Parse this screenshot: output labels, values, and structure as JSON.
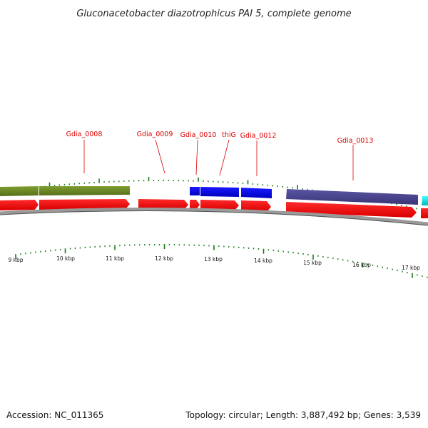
{
  "title": "Gluconacetobacter diazotrophicus PAI 5, complete genome",
  "footer": {
    "accession": "Accession: NC_011365",
    "summary": "Topology: circular; Length: 3,887,492 bp; Genes: 3,539"
  },
  "colors": {
    "cds": "#ff0000",
    "backbone": "#8a8a8a",
    "label": "#dd0000",
    "tick": "#1a7a1a",
    "olive": "#6b8a23",
    "blue": "#0000ee",
    "slate": "#4a4590",
    "cyan": "#00dddd"
  },
  "gene_labels": [
    "Gdia_0008",
    "Gdia_0009",
    "Gdia_0010",
    "thiG",
    "Gdia_0012",
    "Gdia_0013"
  ],
  "scale_labels": [
    "9 kbp",
    "10 kbp",
    "11 kbp",
    "12 kbp",
    "13 kbp",
    "14 kbp",
    "15 kbp",
    "16 kbp",
    "17 kbp"
  ]
}
